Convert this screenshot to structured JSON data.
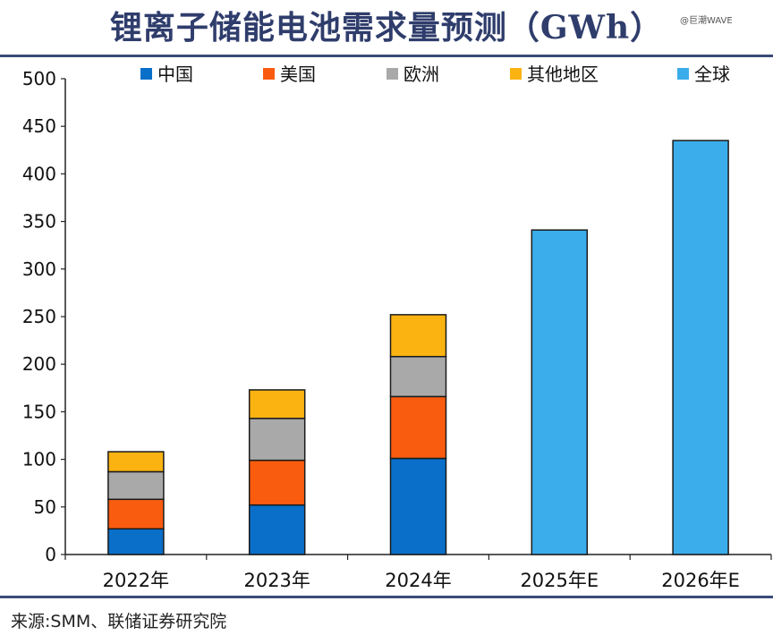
{
  "title": "锂离子储能电池需求量预测（GWh）",
  "watermark": "@巨潮WAVE",
  "source": "来源:SMM、联储证券研究院",
  "colors": {
    "china": "#0a6fc9",
    "usa": "#fa5c0f",
    "europe": "#a9a9a9",
    "other": "#fbb312",
    "global": "#3badea",
    "rule": "#3a4a78",
    "title": "#2f3d6c"
  },
  "chart_data": {
    "type": "bar",
    "stacked": true,
    "categories": [
      "2022年",
      "2023年",
      "2024年",
      "2025年E",
      "2026年E"
    ],
    "series": [
      {
        "name": "中国",
        "key": "china",
        "values": [
          27,
          52,
          101,
          null,
          null
        ]
      },
      {
        "name": "美国",
        "key": "usa",
        "values": [
          31,
          47,
          65,
          null,
          null
        ]
      },
      {
        "name": "欧洲",
        "key": "europe",
        "values": [
          29,
          44,
          42,
          null,
          null
        ]
      },
      {
        "name": "其他地区",
        "key": "other",
        "values": [
          21,
          30,
          44,
          null,
          null
        ]
      },
      {
        "name": "全球",
        "key": "global",
        "values": [
          null,
          null,
          null,
          341,
          435
        ]
      }
    ],
    "ylim": [
      0,
      500
    ],
    "yticks": [
      0,
      50,
      100,
      150,
      200,
      250,
      300,
      350,
      400,
      450,
      500
    ],
    "xlabel": "",
    "ylabel": "",
    "legend_position": "top",
    "grid": false
  }
}
